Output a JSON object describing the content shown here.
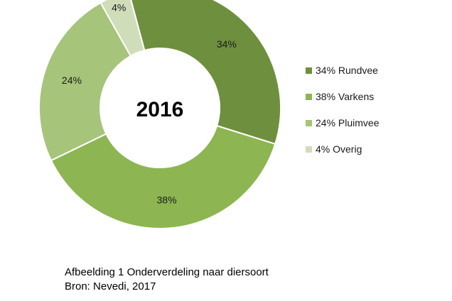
{
  "chart_data": {
    "type": "pie",
    "title": "2016",
    "donut": true,
    "start_angle_deg": -15,
    "slices": [
      {
        "label": "Rundvee",
        "value": 34,
        "data_label": "34%",
        "legend": "34% Rundvee",
        "color": "#6e8f3e"
      },
      {
        "label": "Varkens",
        "value": 38,
        "data_label": "38%",
        "legend": "38% Varkens",
        "color": "#8db552"
      },
      {
        "label": "Pluimvee",
        "value": 24,
        "data_label": "24%",
        "legend": "24% Pluimvee",
        "color": "#a6c47a"
      },
      {
        "label": "Overig",
        "value": 4,
        "data_label": "4%",
        "legend": "4% Overig",
        "color": "#d0ddb9"
      }
    ],
    "legend_position": "right"
  },
  "caption": {
    "line1": "Afbeelding 1 Onderverdeling naar diersoort",
    "line2": "Bron: Nevedi, 2017"
  }
}
